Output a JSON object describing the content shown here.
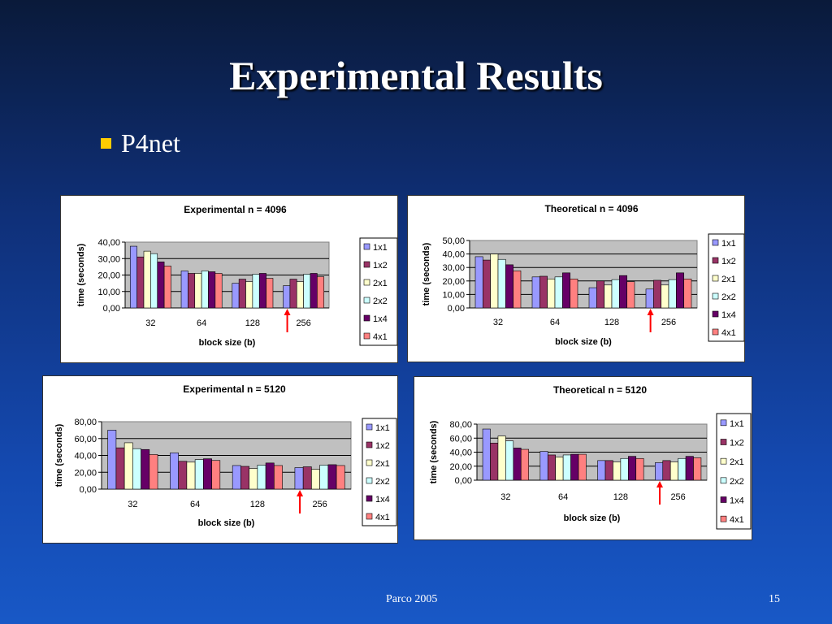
{
  "slide": {
    "title": "Experimental Results",
    "bullet": "P4net",
    "footer_left": "Parco 2005",
    "page_number": "15"
  },
  "colors": {
    "plot_area": "#c0c0c0",
    "series": [
      "#9999ff",
      "#993366",
      "#ffffcc",
      "#ccffff",
      "#660066",
      "#ff8080"
    ],
    "arrow": "#ff0000",
    "bullet": "#ffcc00"
  },
  "chart_data": [
    {
      "type": "bar",
      "title": "Experimental n = 4096",
      "xlabel": "block size (b)",
      "ylabel": "time (seconds)",
      "categories": [
        "32",
        "64",
        "128",
        "256"
      ],
      "ylim": [
        0,
        40
      ],
      "yticks": [
        "0,00",
        "10,00",
        "20,00",
        "30,00",
        "40,00"
      ],
      "grid": true,
      "legend": "right",
      "marker_category": "256",
      "series": [
        {
          "name": "1x1",
          "values": [
            37.5,
            22.5,
            15,
            13.5
          ]
        },
        {
          "name": "1x2",
          "values": [
            31,
            21,
            17.5,
            17.5
          ]
        },
        {
          "name": "2x1",
          "values": [
            34.5,
            21,
            16,
            16
          ]
        },
        {
          "name": "2x2",
          "values": [
            33,
            22.5,
            20.5,
            20.5
          ]
        },
        {
          "name": "1x4",
          "values": [
            28,
            22,
            21,
            21
          ]
        },
        {
          "name": "4x1",
          "values": [
            25.5,
            21,
            18,
            19
          ]
        }
      ]
    },
    {
      "type": "bar",
      "title": "Theoretical n = 4096",
      "xlabel": "block size (b)",
      "ylabel": "time (seconds)",
      "categories": [
        "32",
        "64",
        "128",
        "256"
      ],
      "ylim": [
        0,
        50
      ],
      "yticks": [
        "0,00",
        "10,00",
        "20,00",
        "30,00",
        "40,00",
        "50,00"
      ],
      "grid": true,
      "legend": "right",
      "marker_category": "256",
      "series": [
        {
          "name": "1x1",
          "values": [
            38,
            23,
            15,
            14
          ]
        },
        {
          "name": "1x2",
          "values": [
            35.5,
            23.5,
            20,
            20.5
          ]
        },
        {
          "name": "2x1",
          "values": [
            40,
            21.5,
            17,
            17
          ]
        },
        {
          "name": "2x2",
          "values": [
            36,
            23,
            21,
            21
          ]
        },
        {
          "name": "1x4",
          "values": [
            32,
            26,
            24,
            26
          ]
        },
        {
          "name": "4x1",
          "values": [
            27.5,
            21.5,
            19.5,
            21.5
          ]
        }
      ]
    },
    {
      "type": "bar",
      "title": "Experimental n = 5120",
      "xlabel": "block size (b)",
      "ylabel": "time (seconds)",
      "categories": [
        "32",
        "64",
        "128",
        "256"
      ],
      "ylim": [
        0,
        80
      ],
      "yticks": [
        "0,00",
        "20,00",
        "40,00",
        "60,00",
        "80,00"
      ],
      "grid": true,
      "legend": "right",
      "marker_category": "256",
      "series": [
        {
          "name": "1x1",
          "values": [
            70,
            43,
            28,
            25.5
          ]
        },
        {
          "name": "1x2",
          "values": [
            49,
            33,
            27,
            26.5
          ]
        },
        {
          "name": "2x1",
          "values": [
            55,
            32,
            24.5,
            23.5
          ]
        },
        {
          "name": "2x2",
          "values": [
            48,
            35,
            28.5,
            28.5
          ]
        },
        {
          "name": "1x4",
          "values": [
            47,
            36,
            31,
            29
          ]
        },
        {
          "name": "4x1",
          "values": [
            41,
            34,
            28,
            28
          ]
        }
      ]
    },
    {
      "type": "bar",
      "title": "Theoretical n = 5120",
      "xlabel": "block size (b)",
      "ylabel": "time (seconds)",
      "categories": [
        "32",
        "64",
        "128",
        "256"
      ],
      "ylim": [
        0,
        80
      ],
      "yticks": [
        "0,00",
        "20,00",
        "40,00",
        "60,00",
        "80,00"
      ],
      "grid": true,
      "legend": "right",
      "marker_category": "256",
      "series": [
        {
          "name": "1x1",
          "values": [
            73,
            41,
            28,
            25
          ]
        },
        {
          "name": "1x2",
          "values": [
            53,
            36,
            28,
            28
          ]
        },
        {
          "name": "2x1",
          "values": [
            63,
            33,
            26,
            26
          ]
        },
        {
          "name": "2x2",
          "values": [
            56,
            36,
            31,
            31
          ]
        },
        {
          "name": "1x4",
          "values": [
            46,
            37,
            34,
            34
          ]
        },
        {
          "name": "4x1",
          "values": [
            44,
            37,
            31,
            32
          ]
        }
      ]
    }
  ]
}
